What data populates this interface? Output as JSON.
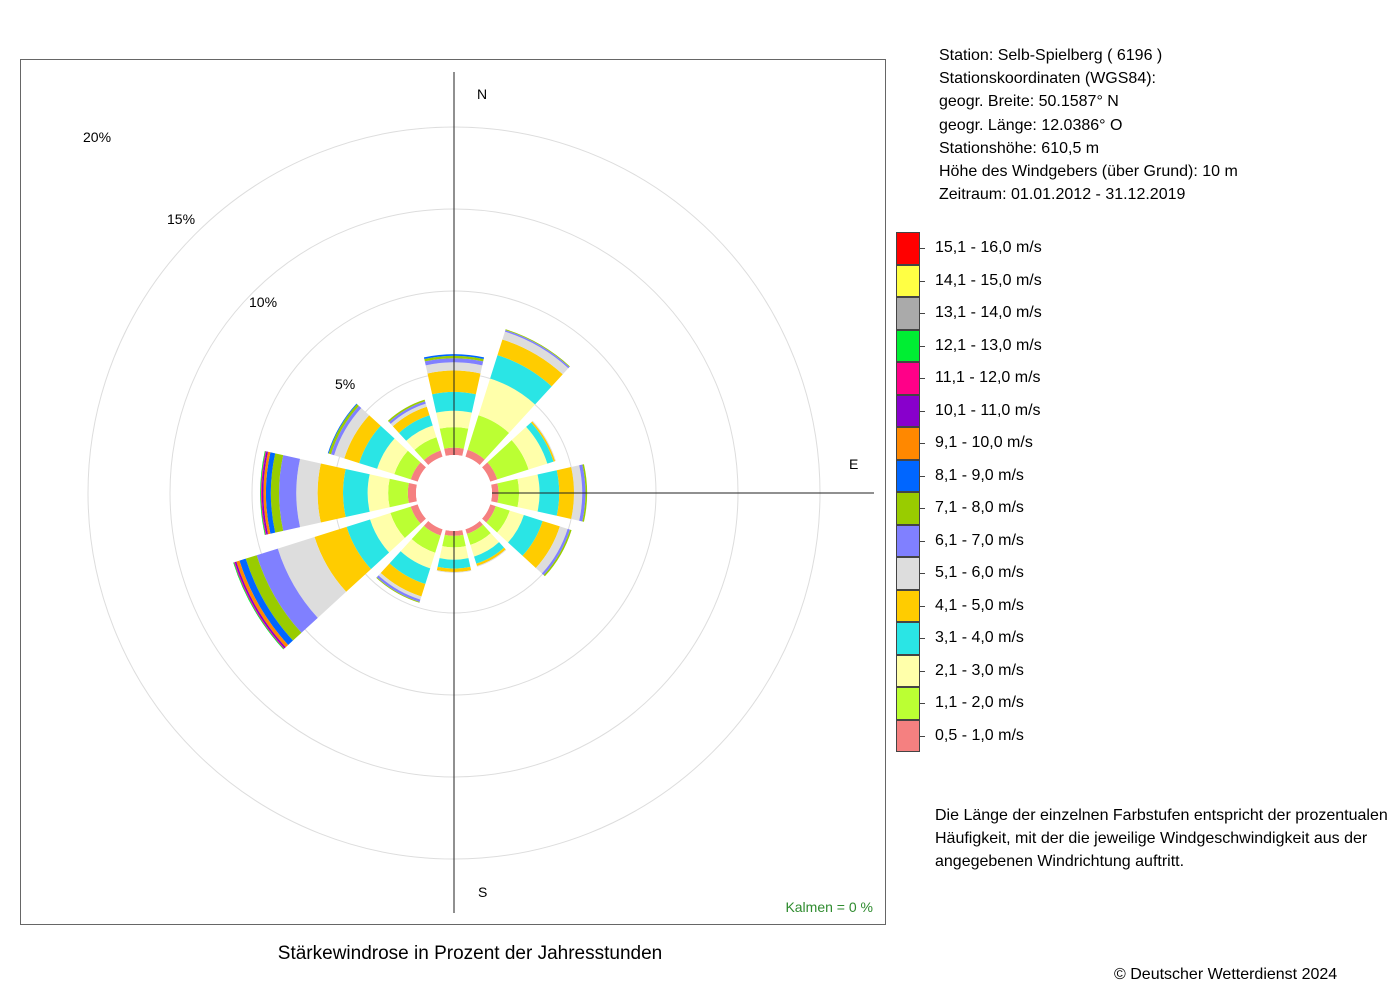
{
  "title": "Stärkewindrose in Prozent der Jahresstunden",
  "station": {
    "line1": "Station:  Selb-Spielberg  ( 6196 )",
    "line2": "Stationskoordinaten (WGS84):",
    "line3": "geogr. Breite: 50.1587° N",
    "line4": "geogr. Länge: 12.0386° O",
    "line5": "Stationshöhe: 610,5 m",
    "line6": "Höhe des Windgebers (über Grund): 10 m",
    "line7": "Zeitraum: 01.01.2012 - 31.12.2019"
  },
  "calm_label": "Kalmen  =  0 %",
  "legend_note": "Die Länge der einzelnen Farbstufen entspricht der prozentualen Häufigkeit, mit der die jeweilige Windgeschwindigkeit aus der angegebenen Windrichtung auftritt.",
  "copyright": "© Deutscher Wetterdienst  2024",
  "directions": {
    "north": "N",
    "east": "E",
    "south": "S"
  },
  "chart_data": {
    "type": "wind-rose",
    "ring_labels": [
      "5%",
      "10%",
      "15%",
      "20%"
    ],
    "ring_values": [
      5,
      10,
      15,
      20
    ],
    "calm_percent": 0,
    "sector_angles_deg": [
      0,
      30,
      60,
      90,
      120,
      150,
      180,
      210,
      240,
      270,
      300,
      330
    ],
    "speed_classes": [
      {
        "label": "0,5 - 1,0 m/s",
        "color": "#f58080"
      },
      {
        "label": "1,1 - 2,0 m/s",
        "color": "#bbff33"
      },
      {
        "label": "2,1 - 3,0 m/s",
        "color": "#ffffaa"
      },
      {
        "label": "3,1 - 4,0 m/s",
        "color": "#2ae5e5"
      },
      {
        "label": "4,1 - 5,0 m/s",
        "color": "#ffcc00"
      },
      {
        "label": "5,1 - 6,0 m/s",
        "color": "#dddddd"
      },
      {
        "label": "6,1 - 7,0 m/s",
        "color": "#8080ff"
      },
      {
        "label": "7,1 - 8,0 m/s",
        "color": "#99cc00"
      },
      {
        "label": "8,1 - 9,0 m/s",
        "color": "#0066ff"
      },
      {
        "label": "9,1 - 10,0 m/s",
        "color": "#ff8800"
      },
      {
        "label": "10,1 - 11,0 m/s",
        "color": "#8800cc"
      },
      {
        "label": "11,1 - 12,0 m/s",
        "color": "#ff0088"
      },
      {
        "label": "12,1 - 13,0 m/s",
        "color": "#00ee33"
      },
      {
        "label": "13,1 - 14,0 m/s",
        "color": "#aaaaaa"
      },
      {
        "label": "14,1 - 15,0 m/s",
        "color": "#ffff44"
      },
      {
        "label": "15,1 - 16,0 m/s",
        "color": "#ff0000"
      }
    ],
    "series": [
      {
        "direction_deg": 0,
        "values": [
          0.45,
          1.25,
          1.0,
          1.15,
          1.3,
          0.5,
          0.25,
          0.15,
          0.1,
          0,
          0,
          0,
          0,
          0,
          0,
          0
        ]
      },
      {
        "direction_deg": 30,
        "values": [
          0.45,
          2.2,
          2.35,
          1.5,
          1.0,
          0.5,
          0.1,
          0.05,
          0,
          0,
          0,
          0,
          0,
          0,
          0,
          0
        ]
      },
      {
        "direction_deg": 60,
        "values": [
          0.45,
          2.0,
          1.2,
          0.4,
          0.1,
          0.05,
          0,
          0,
          0,
          0,
          0,
          0,
          0,
          0,
          0,
          0
        ]
      },
      {
        "direction_deg": 90,
        "values": [
          0.4,
          1.25,
          1.25,
          1.2,
          0.9,
          0.5,
          0.2,
          0.1,
          0,
          0,
          0,
          0,
          0,
          0,
          0,
          0
        ]
      },
      {
        "direction_deg": 120,
        "values": [
          0.35,
          0.9,
          0.9,
          1.2,
          1.1,
          0.5,
          0.15,
          0.1,
          0,
          0,
          0,
          0,
          0,
          0,
          0,
          0
        ]
      },
      {
        "direction_deg": 150,
        "values": [
          0.3,
          0.7,
          0.75,
          0.45,
          0.15,
          0.05,
          0,
          0,
          0,
          0,
          0,
          0,
          0,
          0,
          0,
          0
        ]
      },
      {
        "direction_deg": 180,
        "values": [
          0.3,
          0.7,
          0.75,
          0.55,
          0.2,
          0.05,
          0,
          0,
          0,
          0,
          0,
          0,
          0,
          0,
          0,
          0
        ]
      },
      {
        "direction_deg": 210,
        "values": [
          0.4,
          1.1,
          1.0,
          1.0,
          0.8,
          0.2,
          0.15,
          0.05,
          0,
          0,
          0,
          0,
          0,
          0,
          0,
          0
        ]
      },
      {
        "direction_deg": 240,
        "values": [
          0.45,
          1.3,
          1.3,
          1.5,
          2.05,
          2.35,
          1.35,
          0.7,
          0.4,
          0.2,
          0.1,
          0.05,
          0.05,
          0,
          0,
          0
        ]
      },
      {
        "direction_deg": 270,
        "values": [
          0.5,
          1.2,
          1.25,
          1.5,
          1.55,
          1.3,
          1.05,
          0.5,
          0.3,
          0.15,
          0.1,
          0.05,
          0.05,
          0,
          0,
          0
        ]
      },
      {
        "direction_deg": 300,
        "values": [
          0.45,
          1.05,
          1.1,
          1.15,
          0.95,
          0.65,
          0.2,
          0.15,
          0.05,
          0,
          0,
          0,
          0,
          0,
          0,
          0
        ]
      },
      {
        "direction_deg": 330,
        "values": [
          0.4,
          0.85,
          0.75,
          0.65,
          0.55,
          0.2,
          0.15,
          0.1,
          0,
          0,
          0,
          0,
          0,
          0,
          0,
          0
        ]
      }
    ]
  }
}
